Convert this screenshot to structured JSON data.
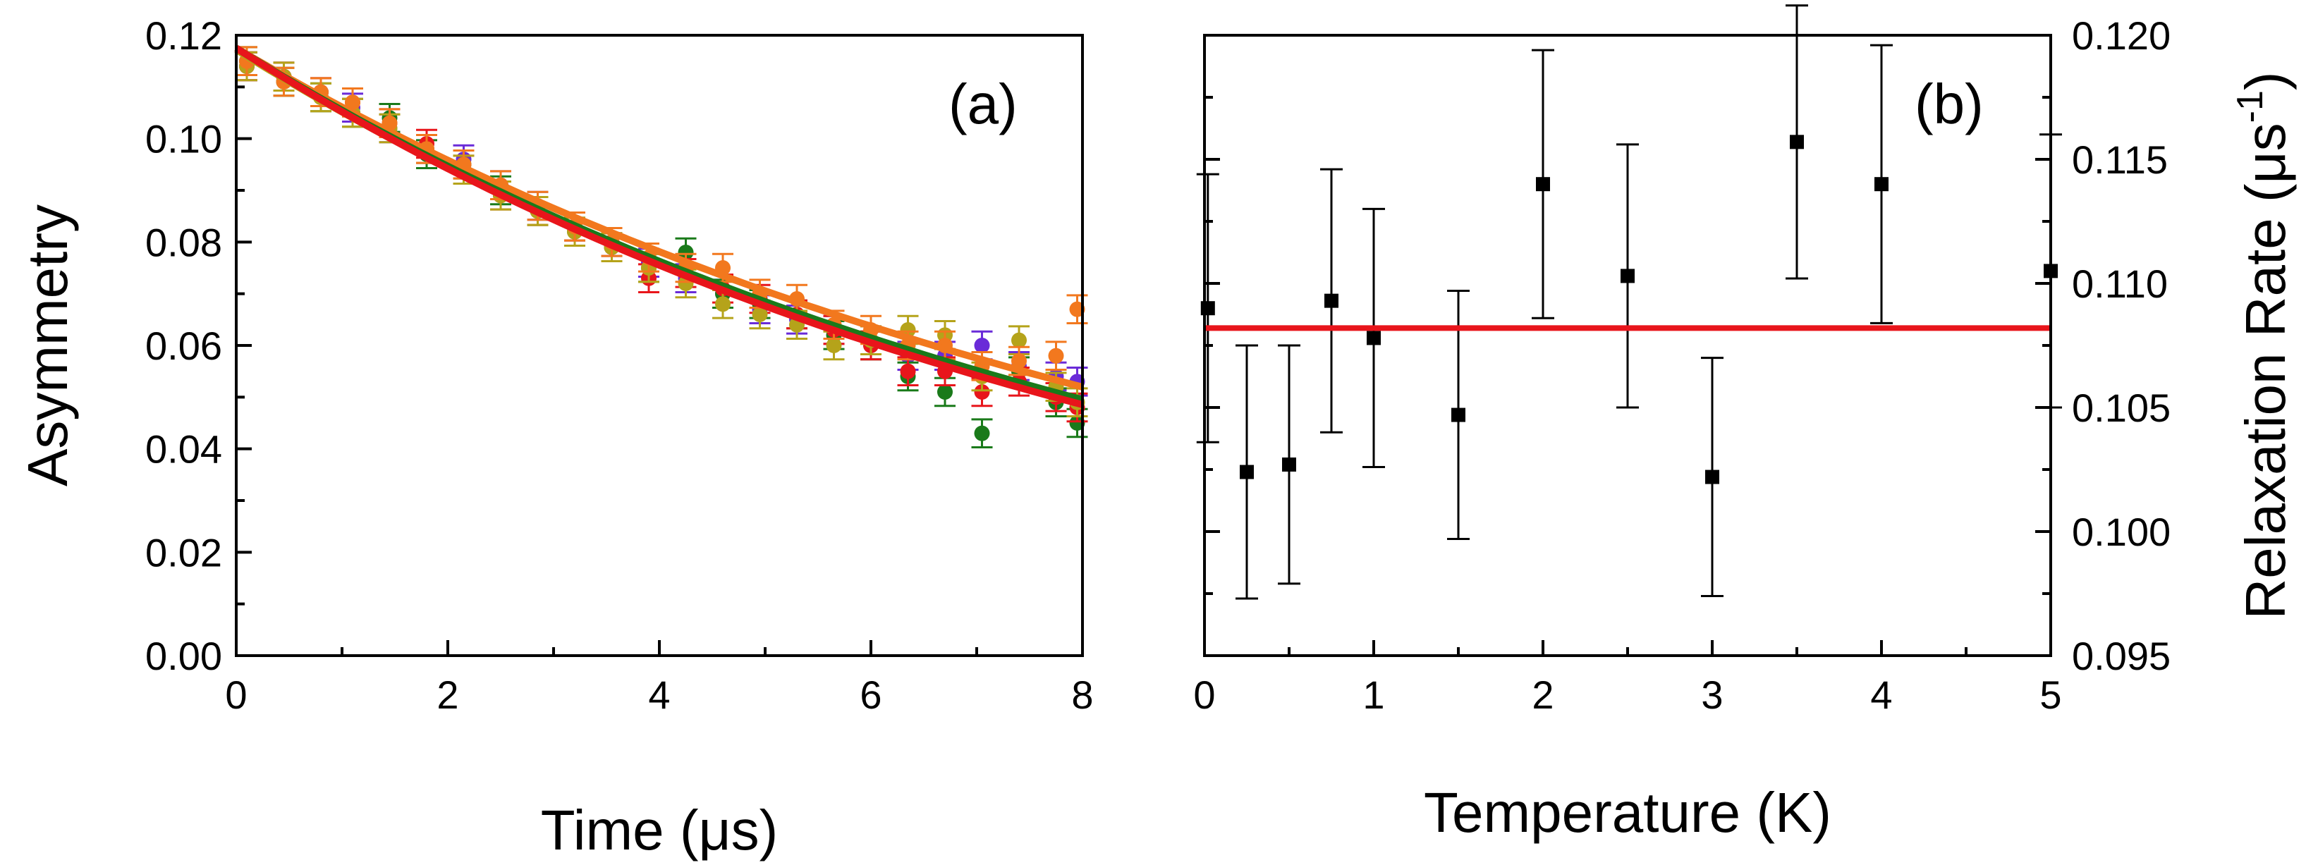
{
  "chart_data": [
    {
      "type": "scatter",
      "panel_label": "(a)",
      "xlabel": "Time (μs)",
      "ylabel": "Asymmetry",
      "xlim": [
        0,
        8
      ],
      "ylim": [
        0,
        0.12
      ],
      "x_ticks": [
        "0",
        "2",
        "4",
        "6",
        "8"
      ],
      "y_ticks": [
        "0.00",
        "0.02",
        "0.04",
        "0.06",
        "0.08",
        "0.10",
        "0.12"
      ],
      "grid": false,
      "series": [
        {
          "name": "data-purple",
          "color": "#6a2bd8",
          "points": [
            [
              0.1,
              0.114
            ],
            [
              0.45,
              0.112
            ],
            [
              0.8,
              0.109
            ],
            [
              1.1,
              0.106
            ],
            [
              1.45,
              0.102
            ],
            [
              1.8,
              0.098
            ],
            [
              2.15,
              0.096
            ],
            [
              2.5,
              0.091
            ],
            [
              2.85,
              0.087
            ],
            [
              3.2,
              0.083
            ],
            [
              3.55,
              0.08
            ],
            [
              3.9,
              0.076
            ],
            [
              4.25,
              0.073
            ],
            [
              4.6,
              0.07
            ],
            [
              4.95,
              0.067
            ],
            [
              5.3,
              0.065
            ],
            [
              5.65,
              0.063
            ],
            [
              6.0,
              0.061
            ],
            [
              6.35,
              0.058
            ],
            [
              6.7,
              0.058
            ],
            [
              7.05,
              0.06
            ],
            [
              7.4,
              0.056
            ],
            [
              7.75,
              0.054
            ],
            [
              7.95,
              0.053
            ]
          ]
        },
        {
          "name": "data-green",
          "color": "#1a7a1a",
          "points": [
            [
              0.1,
              0.115
            ],
            [
              0.45,
              0.111
            ],
            [
              0.8,
              0.108
            ],
            [
              1.1,
              0.105
            ],
            [
              1.45,
              0.104
            ],
            [
              1.8,
              0.097
            ],
            [
              2.15,
              0.095
            ],
            [
              2.5,
              0.09
            ],
            [
              2.85,
              0.086
            ],
            [
              3.2,
              0.082
            ],
            [
              3.55,
              0.079
            ],
            [
              3.9,
              0.075
            ],
            [
              4.25,
              0.078
            ],
            [
              4.6,
              0.07
            ],
            [
              4.95,
              0.068
            ],
            [
              5.3,
              0.066
            ],
            [
              5.65,
              0.062
            ],
            [
              6.0,
              0.06
            ],
            [
              6.35,
              0.054
            ],
            [
              6.7,
              0.051
            ],
            [
              7.05,
              0.043
            ],
            [
              7.4,
              0.055
            ],
            [
              7.75,
              0.049
            ],
            [
              7.95,
              0.045
            ]
          ]
        },
        {
          "name": "data-red",
          "color": "#e8151b",
          "points": [
            [
              0.1,
              0.114
            ],
            [
              0.45,
              0.112
            ],
            [
              0.8,
              0.109
            ],
            [
              1.1,
              0.107
            ],
            [
              1.45,
              0.103
            ],
            [
              1.8,
              0.099
            ],
            [
              2.15,
              0.094
            ],
            [
              2.5,
              0.089
            ],
            [
              2.85,
              0.086
            ],
            [
              3.2,
              0.083
            ],
            [
              3.55,
              0.079
            ],
            [
              3.9,
              0.073
            ],
            [
              4.25,
              0.074
            ],
            [
              4.6,
              0.071
            ],
            [
              4.95,
              0.069
            ],
            [
              5.3,
              0.066
            ],
            [
              5.65,
              0.063
            ],
            [
              6.0,
              0.06
            ],
            [
              6.35,
              0.055
            ],
            [
              6.7,
              0.055
            ],
            [
              7.05,
              0.051
            ],
            [
              7.4,
              0.053
            ],
            [
              7.75,
              0.05
            ],
            [
              7.95,
              0.048
            ]
          ]
        },
        {
          "name": "data-olive",
          "color": "#b5a31a",
          "points": [
            [
              0.1,
              0.114
            ],
            [
              0.45,
              0.112
            ],
            [
              0.8,
              0.108
            ],
            [
              1.1,
              0.105
            ],
            [
              1.45,
              0.102
            ],
            [
              1.8,
              0.098
            ],
            [
              2.15,
              0.094
            ],
            [
              2.5,
              0.089
            ],
            [
              2.85,
              0.086
            ],
            [
              3.2,
              0.082
            ],
            [
              3.55,
              0.079
            ],
            [
              3.9,
              0.075
            ],
            [
              4.25,
              0.072
            ],
            [
              4.6,
              0.068
            ],
            [
              4.95,
              0.066
            ],
            [
              5.3,
              0.064
            ],
            [
              5.65,
              0.06
            ],
            [
              6.0,
              0.061
            ],
            [
              6.35,
              0.063
            ],
            [
              6.7,
              0.062
            ],
            [
              7.05,
              0.054
            ],
            [
              7.4,
              0.061
            ],
            [
              7.75,
              0.052
            ],
            [
              7.95,
              0.049
            ]
          ]
        },
        {
          "name": "data-orange",
          "color": "#f2781e",
          "points": [
            [
              0.1,
              0.115
            ],
            [
              0.45,
              0.111
            ],
            [
              0.8,
              0.109
            ],
            [
              1.1,
              0.107
            ],
            [
              1.45,
              0.103
            ],
            [
              1.8,
              0.098
            ],
            [
              2.15,
              0.095
            ],
            [
              2.5,
              0.091
            ],
            [
              2.85,
              0.087
            ],
            [
              3.2,
              0.083
            ],
            [
              3.55,
              0.08
            ],
            [
              3.9,
              0.077
            ],
            [
              4.25,
              0.075
            ],
            [
              4.6,
              0.075
            ],
            [
              4.95,
              0.07
            ],
            [
              5.3,
              0.069
            ],
            [
              5.65,
              0.064
            ],
            [
              6.0,
              0.063
            ],
            [
              6.35,
              0.06
            ],
            [
              6.7,
              0.06
            ],
            [
              7.05,
              0.056
            ],
            [
              7.4,
              0.057
            ],
            [
              7.75,
              0.058
            ],
            [
              7.95,
              0.067
            ]
          ]
        }
      ],
      "fit_curves": [
        {
          "name": "fit-orange",
          "color": "#f2781e",
          "a0": 0.1175,
          "lambda": 0.102
        },
        {
          "name": "fit-olive",
          "color": "#b5a31a",
          "a0": 0.1172,
          "lambda": 0.1085
        },
        {
          "name": "fit-green",
          "color": "#1a7a1a",
          "a0": 0.1175,
          "lambda": 0.108
        },
        {
          "name": "fit-red",
          "color": "#e8151b",
          "a0": 0.1175,
          "lambda": 0.1105
        }
      ],
      "errorbar": 0.0027
    },
    {
      "type": "scatter",
      "panel_label": "(b)",
      "xlabel": "Temperature (K)",
      "ylabel": "Relaxation Rate (μs",
      "ylabel_sup": "-1",
      "ylabel_end": ")",
      "xlim": [
        0,
        5
      ],
      "ylim": [
        0.095,
        0.12
      ],
      "x_ticks": [
        "0",
        "1",
        "2",
        "3",
        "4",
        "5"
      ],
      "y_ticks": [
        "0.095",
        "0.100",
        "0.105",
        "0.110",
        "0.115",
        "0.120"
      ],
      "grid": false,
      "marker_color": "#000000",
      "points": [
        {
          "T": 0.02,
          "rate": 0.109,
          "err": 0.0054
        },
        {
          "T": 0.25,
          "rate": 0.1024,
          "err": 0.0051
        },
        {
          "T": 0.5,
          "rate": 0.1027,
          "err": 0.0048
        },
        {
          "T": 0.75,
          "rate": 0.1093,
          "err": 0.0053
        },
        {
          "T": 1.0,
          "rate": 0.1078,
          "err": 0.0052
        },
        {
          "T": 1.5,
          "rate": 0.1047,
          "err": 0.005
        },
        {
          "T": 2.0,
          "rate": 0.114,
          "err": 0.0054
        },
        {
          "T": 2.5,
          "rate": 0.1103,
          "err": 0.0053
        },
        {
          "T": 3.0,
          "rate": 0.1022,
          "err": 0.0048
        },
        {
          "T": 3.5,
          "rate": 0.1157,
          "err": 0.0055
        },
        {
          "T": 4.0,
          "rate": 0.114,
          "err": 0.0056
        },
        {
          "T": 5.0,
          "rate": 0.1105,
          "err": 0.0055
        }
      ],
      "mean_line": {
        "value": 0.1082,
        "color": "#e8151b"
      }
    }
  ]
}
